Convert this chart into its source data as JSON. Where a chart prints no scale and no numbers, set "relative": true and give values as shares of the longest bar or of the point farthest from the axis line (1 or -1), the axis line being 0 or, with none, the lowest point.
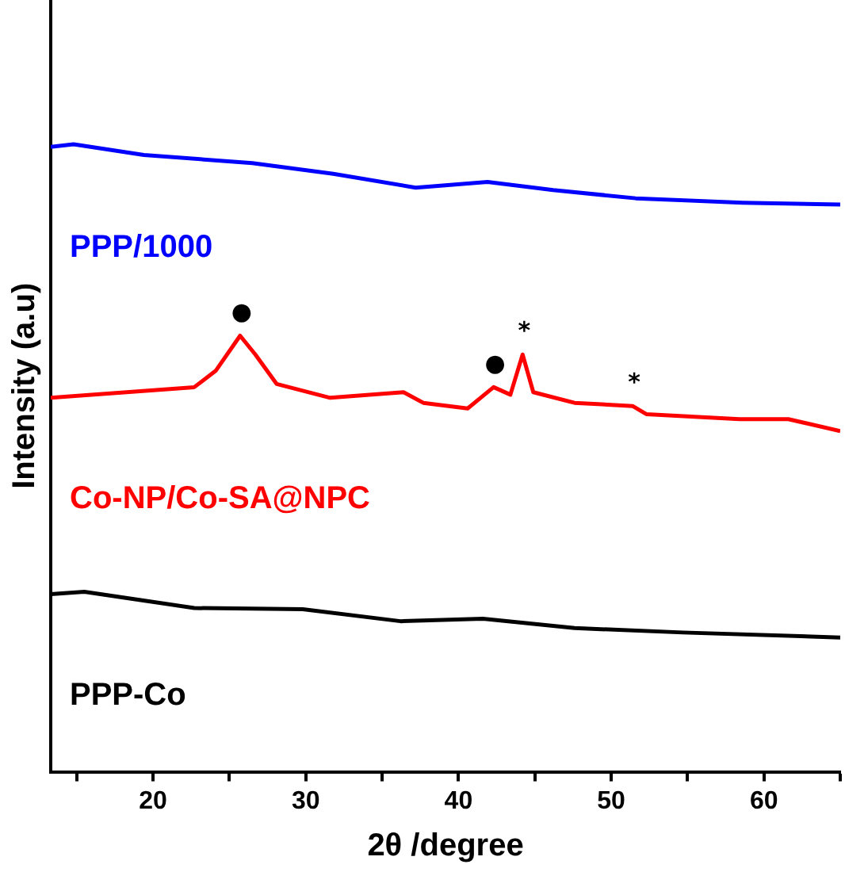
{
  "chart_data": {
    "type": "line",
    "relative": true,
    "xlabel": "2θ /degree",
    "ylabel": "Intensity (a.u)",
    "xlim": [
      13.3,
      65
    ],
    "xticks": [
      {
        "value": 15,
        "label": null
      },
      20,
      {
        "value": 25,
        "label": null
      },
      30,
      {
        "value": 35,
        "label": null
      },
      40,
      {
        "value": 45,
        "label": null
      },
      50,
      {
        "value": 55,
        "label": null
      },
      60,
      {
        "value": 65,
        "label": null
      }
    ],
    "grid": false,
    "legend": false,
    "marker": "none",
    "line_style": "solid",
    "series": [
      {
        "name": "PPP/1000",
        "color": "#0000ff",
        "x": [
          13.3,
          14.8,
          19.4,
          26.5,
          31.8,
          37.2,
          41.9,
          46.2,
          51.6,
          58.6,
          65
        ],
        "values": [
          0.996,
          1.0,
          0.983,
          0.97,
          0.953,
          0.931,
          0.94,
          0.927,
          0.914,
          0.907,
          0.904
        ]
      },
      {
        "name": "Co-NP/Co-SA@NPC",
        "color": "#ff0000",
        "x": [
          13.3,
          22.7,
          24.1,
          25.7,
          26.7,
          28.1,
          31.6,
          36.4,
          37.7,
          40.6,
          42.3,
          43.4,
          44.2,
          44.9,
          47.6,
          51.4,
          52.3,
          58.4,
          61.6,
          65
        ],
        "values": [
          0.596,
          0.613,
          0.639,
          0.695,
          0.665,
          0.618,
          0.596,
          0.605,
          0.588,
          0.579,
          0.613,
          0.601,
          0.665,
          0.605,
          0.588,
          0.583,
          0.57,
          0.562,
          0.562,
          0.543
        ]
      },
      {
        "name": "PPP-Co",
        "color": "#000000",
        "x": [
          13.3,
          15.5,
          19.1,
          22.7,
          29.8,
          36.2,
          41.6,
          47.6,
          54.7,
          65
        ],
        "values": [
          0.283,
          0.287,
          0.274,
          0.261,
          0.259,
          0.24,
          0.244,
          0.229,
          0.222,
          0.214
        ]
      }
    ],
    "annotations": [
      {
        "text": "●",
        "x": 25.7,
        "y": 0.695
      },
      {
        "text": "●",
        "x": 42.3,
        "y": 0.613
      },
      {
        "text": "*",
        "x": 44.2,
        "y": 0.665
      },
      {
        "text": "*",
        "x": 51.4,
        "y": 0.583
      }
    ]
  }
}
